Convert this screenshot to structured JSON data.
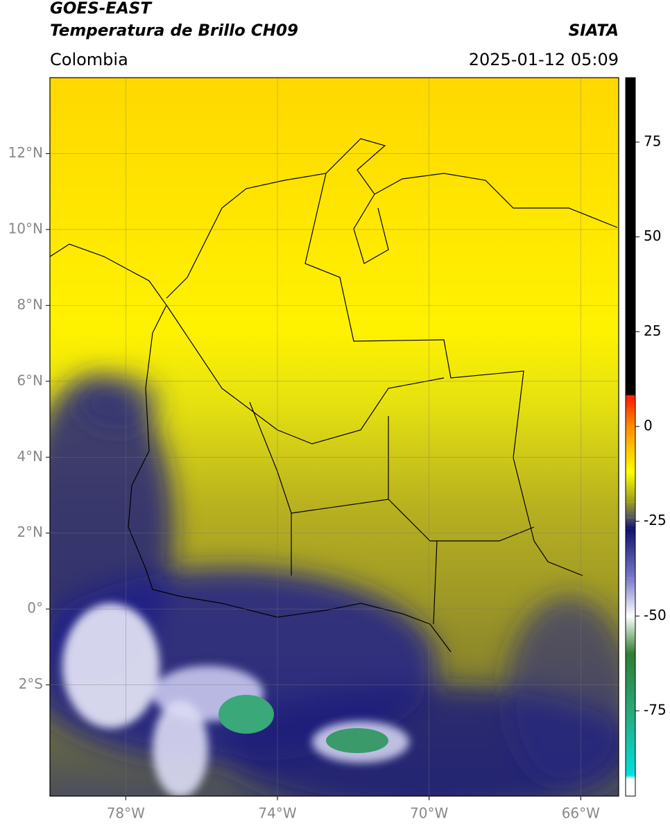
{
  "header": {
    "title": "GOES-EAST",
    "subtitle": "Temperatura de Brillo CH09",
    "source": "SIATA",
    "region": "Colombia",
    "datetime": "2025-01-12 05:09"
  },
  "map": {
    "lonlim": [
      -80,
      -65
    ],
    "latlim": [
      -4.93,
      14
    ],
    "grid": true,
    "lonticks": [
      {
        "value": -78,
        "label": "78°W"
      },
      {
        "value": -74,
        "label": "74°W"
      },
      {
        "value": -70,
        "label": "70°W"
      },
      {
        "value": -66,
        "label": "66°W"
      }
    ],
    "latticks": [
      {
        "value": 12,
        "label": "12°N"
      },
      {
        "value": 10,
        "label": "10°N"
      },
      {
        "value": 8,
        "label": "8°N"
      },
      {
        "value": 6,
        "label": "6°N"
      },
      {
        "value": 4,
        "label": "4°N"
      },
      {
        "value": 2,
        "label": "2°N"
      },
      {
        "value": 0,
        "label": "0°"
      },
      {
        "value": -2,
        "label": "2°S"
      }
    ]
  },
  "colorbar": {
    "clim": [
      -97.5,
      92
    ],
    "ticks": [
      75,
      50,
      25,
      0,
      -25,
      -50,
      -75
    ],
    "colormap": [
      {
        "value": 92,
        "color": "#000000"
      },
      {
        "value": 8.5,
        "color": "#000000"
      },
      {
        "value": 8,
        "color": "#ff1a00"
      },
      {
        "value": 0,
        "color": "#ff8c00"
      },
      {
        "value": -12,
        "color": "#ffff00"
      },
      {
        "value": -20,
        "color": "#9a9a1e"
      },
      {
        "value": -24,
        "color": "#555566"
      },
      {
        "value": -27,
        "color": "#101070"
      },
      {
        "value": -40,
        "color": "#7a7ac8"
      },
      {
        "value": -50,
        "color": "#ffffff"
      },
      {
        "value": -60,
        "color": "#2e7d32"
      },
      {
        "value": -75,
        "color": "#2aa878"
      },
      {
        "value": -92,
        "color": "#00e0e0"
      },
      {
        "value": -93,
        "color": "#ffffff"
      },
      {
        "value": -97.5,
        "color": "#ffffff"
      }
    ]
  }
}
